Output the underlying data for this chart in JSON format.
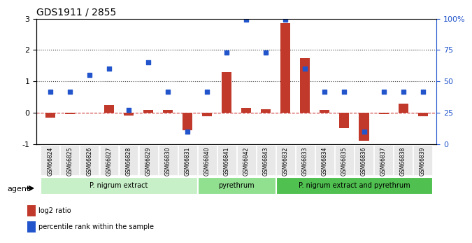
{
  "title": "GDS1911 / 2855",
  "samples": [
    "GSM66824",
    "GSM66825",
    "GSM66826",
    "GSM66827",
    "GSM66828",
    "GSM66829",
    "GSM66830",
    "GSM66831",
    "GSM66840",
    "GSM66841",
    "GSM66842",
    "GSM66843",
    "GSM66832",
    "GSM66833",
    "GSM66834",
    "GSM66835",
    "GSM66836",
    "GSM66837",
    "GSM66838",
    "GSM66839"
  ],
  "log2_ratio": [
    -0.15,
    -0.05,
    0.0,
    0.25,
    -0.08,
    0.1,
    0.08,
    -0.55,
    -0.12,
    1.3,
    0.15,
    0.12,
    2.85,
    1.75,
    0.08,
    -0.5,
    -0.9,
    -0.05,
    0.3,
    -0.1
  ],
  "percentile": [
    0.42,
    0.42,
    0.55,
    0.6,
    0.27,
    0.65,
    0.42,
    0.1,
    0.42,
    0.73,
    0.99,
    0.73,
    0.99,
    0.6,
    0.42,
    0.42,
    0.1,
    0.42,
    0.42,
    0.42
  ],
  "groups": [
    {
      "label": "P. nigrum extract",
      "start": 0,
      "end": 7,
      "color": "#c8f0c8"
    },
    {
      "label": "pyrethrum",
      "start": 8,
      "end": 11,
      "color": "#90e090"
    },
    {
      "label": "P. nigrum extract and pyrethrum",
      "start": 12,
      "end": 19,
      "color": "#50c050"
    }
  ],
  "bar_color_red": "#c0392b",
  "dot_color_blue": "#2255cc",
  "ylim_left": [
    -1,
    3
  ],
  "ylim_right": [
    0,
    100
  ],
  "yticks_left": [
    -1,
    0,
    1,
    2,
    3
  ],
  "yticks_right": [
    0,
    25,
    50,
    75,
    100
  ],
  "ytick_labels_right": [
    "0",
    "25",
    "50",
    "75",
    "100%"
  ],
  "hline_y": [
    0,
    1,
    2
  ],
  "hline_styles": [
    "--",
    ":",
    ":"
  ],
  "hline_colors": [
    "#cc3333",
    "#333333",
    "#333333"
  ],
  "agent_label": "agent",
  "legend_red_label": "log2 ratio",
  "legend_blue_label": "percentile rank within the sample",
  "bg_color": "#e8e8e8"
}
